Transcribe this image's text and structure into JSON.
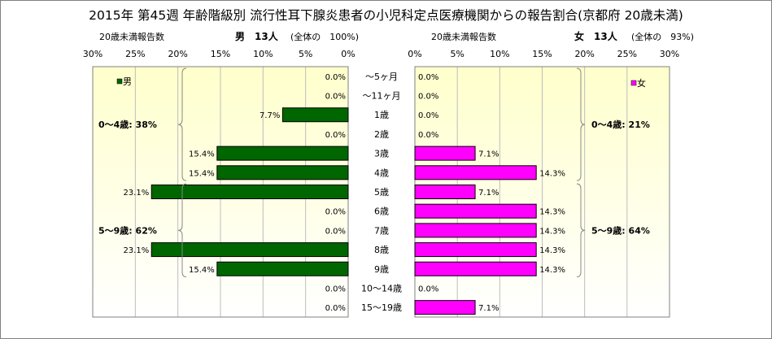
{
  "title": "2015年 第45週 年齢階級別 流行性耳下腺炎患者の小児科定点医療機関からの報告割合(京都府 20歳未満)",
  "left_header": {
    "caption": "20歳未満報告数",
    "group": "男　13人",
    "share": "(全体の　100%)"
  },
  "right_header": {
    "caption": "20歳未満報告数",
    "group": "女　13人",
    "share": "(全体の　93%)"
  },
  "colors": {
    "male": "#006600",
    "female": "#ff00ff",
    "plot_background_top": "#ffffcc",
    "plot_background_bottom": "#ffffff"
  },
  "chart_data": [
    {
      "type": "bar",
      "orientation": "horizontal",
      "direction": "right-to-left",
      "series": [
        {
          "name": "男",
          "values": [
            0.0,
            0.0,
            7.7,
            0.0,
            15.4,
            15.4,
            23.1,
            0.0,
            0.0,
            23.1,
            15.4,
            0.0,
            0.0
          ]
        }
      ],
      "categories": [
        "～5ヶ月",
        "～11ヶ月",
        "1歳",
        "2歳",
        "3歳",
        "4歳",
        "5歳",
        "6歳",
        "7歳",
        "8歳",
        "9歳",
        "10～14歳",
        "15～19歳"
      ],
      "data_labels": [
        "0.0%",
        "0.0%",
        "7.7%",
        "0.0%",
        "15.4%",
        "15.4%",
        "23.1%",
        "0.0%",
        "0.0%",
        "23.1%",
        "15.4%",
        "0.0%",
        "0.0%"
      ],
      "xlim": [
        0,
        30
      ],
      "ticks": [
        "30%",
        "25%",
        "20%",
        "15%",
        "10%",
        "5%",
        "0%"
      ],
      "grid": true,
      "legend": "top-left",
      "annotations": [
        "0～4歳: 38%",
        "5～9歳: 62%"
      ]
    },
    {
      "type": "bar",
      "orientation": "horizontal",
      "direction": "left-to-right",
      "series": [
        {
          "name": "女",
          "values": [
            0.0,
            0.0,
            0.0,
            0.0,
            7.1,
            14.3,
            7.1,
            14.3,
            14.3,
            14.3,
            14.3,
            0.0,
            7.1
          ]
        }
      ],
      "categories": [
        "～5ヶ月",
        "～11ヶ月",
        "1歳",
        "2歳",
        "3歳",
        "4歳",
        "5歳",
        "6歳",
        "7歳",
        "8歳",
        "9歳",
        "10～14歳",
        "15～19歳"
      ],
      "data_labels": [
        "0.0%",
        "0.0%",
        "0.0%",
        "0.0%",
        "7.1%",
        "14.3%",
        "7.1%",
        "14.3%",
        "14.3%",
        "14.3%",
        "14.3%",
        "0.0%",
        "7.1%"
      ],
      "xlim": [
        0,
        30
      ],
      "ticks": [
        "0%",
        "5%",
        "10%",
        "15%",
        "20%",
        "25%",
        "30%"
      ],
      "grid": true,
      "legend": "top-right",
      "annotations": [
        "0～4歳: 21%",
        "5～9歳: 64%"
      ]
    }
  ]
}
